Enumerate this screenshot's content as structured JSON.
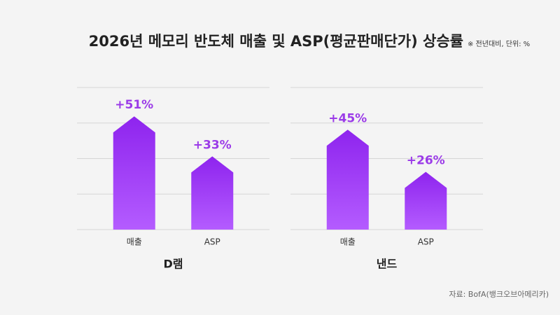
{
  "title": "2026년 메모리 반도체 매출 및 ASP(평균판매단가) 상승률",
  "note": "※ 전년대비, 단위: %",
  "source": "자료: BofA(뱅크오브아메리카)",
  "chart_data": [
    {
      "type": "bar",
      "title": "D램",
      "categories": [
        "매출",
        "ASP"
      ],
      "values": [
        51,
        33
      ],
      "value_labels": [
        "+51%",
        "+33%"
      ],
      "color": "#9b30f0",
      "ylim": [
        0,
        64
      ],
      "yticks": [
        0,
        16,
        32,
        48,
        64
      ],
      "grid": true
    },
    {
      "type": "bar",
      "title": "낸드",
      "categories": [
        "매출",
        "ASP"
      ],
      "values": [
        45,
        26
      ],
      "value_labels": [
        "+45%",
        "+26%"
      ],
      "color": "#9b30f0",
      "ylim": [
        0,
        64
      ],
      "yticks": [
        0,
        16,
        32,
        48,
        64
      ],
      "grid": true
    }
  ]
}
